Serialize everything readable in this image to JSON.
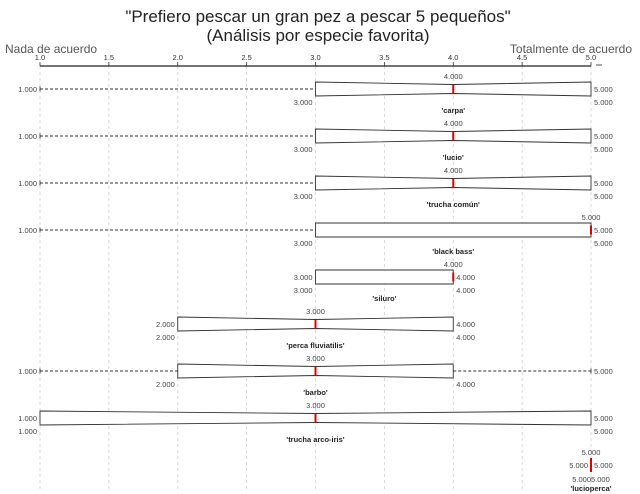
{
  "title": "\"Prefiero pescar un gran pez a pescar 5 pequeños\"",
  "subtitle": "(Análisis por especie favorita)",
  "chart_data": {
    "type": "boxplot",
    "title": "\"Prefiero pescar un gran pez a pescar 5 pequeños\"",
    "subtitle": "(Análisis por especie favorita)",
    "x_left_label": "Nada de acuerdo",
    "x_right_label": "Totalmente de acuerdo",
    "xlim": [
      1.0,
      5.0
    ],
    "ticks": [
      1.0,
      1.5,
      2.0,
      2.5,
      3.0,
      3.5,
      4.0,
      4.5,
      5.0
    ],
    "tick_labels": [
      "1.0",
      "1.5",
      "2.0",
      "2.5",
      "3.0",
      "3.5",
      "4.0",
      "4.5",
      "5.0"
    ],
    "grid": true,
    "series": [
      {
        "category": "'carpa'",
        "min": 1.0,
        "q1": 3.0,
        "median": 4.0,
        "q3": 5.0,
        "max": 5.0,
        "labels": {
          "min": "1.000",
          "q1": "3.000",
          "median": "4.000",
          "q3": "5.000",
          "max": "5.000"
        }
      },
      {
        "category": "'lucio'",
        "min": 1.0,
        "q1": 3.0,
        "median": 4.0,
        "q3": 5.0,
        "max": 5.0,
        "labels": {
          "min": "1.000",
          "q1": "3.000",
          "median": "4.000",
          "q3": "5.000",
          "max": "5.000"
        }
      },
      {
        "category": "'trucha común'",
        "min": 1.0,
        "q1": 3.0,
        "median": 4.0,
        "q3": 5.0,
        "max": 5.0,
        "labels": {
          "min": "1.000",
          "q1": "3.000",
          "median": "4.000",
          "q3": "5.000",
          "max": "5.000"
        }
      },
      {
        "category": "'black bass'",
        "min": 1.0,
        "q1": 3.0,
        "median": 5.0,
        "q3": 5.0,
        "max": 5.0,
        "labels": {
          "min": "1.000",
          "q1": "3.000",
          "median": "5.000",
          "q3": "5.000",
          "max": "5.000"
        }
      },
      {
        "category": "'siluro'",
        "min": 3.0,
        "q1": 3.0,
        "median": 4.0,
        "q3": 4.0,
        "max": 4.0,
        "labels": {
          "min": "3.000",
          "q1": "3.000",
          "median": "4.000",
          "q3": "4.000",
          "max": "4.000"
        }
      },
      {
        "category": "'perca fluviatilis'",
        "min": 2.0,
        "q1": 2.0,
        "median": 3.0,
        "q3": 4.0,
        "max": 4.0,
        "labels": {
          "min": "2.000",
          "q1": "2.000",
          "median": "3.000",
          "q3": "4.000",
          "max": "4.000"
        }
      },
      {
        "category": "'barbo'",
        "min": 1.0,
        "q1": 2.0,
        "median": 3.0,
        "q3": 4.0,
        "max": 5.0,
        "labels": {
          "min": "1.000",
          "q1": "2.000",
          "median": "3.000",
          "q3": "4.000",
          "max": "5.000"
        }
      },
      {
        "category": "'trucha arco-iris'",
        "min": 1.0,
        "q1": 1.0,
        "median": 3.0,
        "q3": 5.0,
        "max": 5.0,
        "labels": {
          "min": "1.000",
          "q1": "1.000",
          "median": "3.000",
          "q3": "5.000",
          "max": "5.000"
        }
      },
      {
        "category": "'lucioperca'",
        "min": 5.0,
        "q1": 5.0,
        "median": 5.0,
        "q3": 5.0,
        "max": 5.0,
        "labels": {
          "min": "5.000",
          "q1": "5.000",
          "median": "5.000",
          "q3": "5.000",
          "max": "5.000"
        }
      }
    ]
  }
}
